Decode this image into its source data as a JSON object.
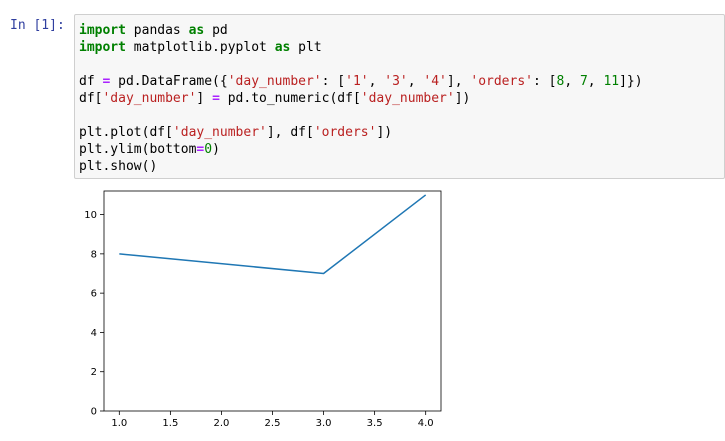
{
  "prompt": "In [1]:",
  "code_lines": [
    [
      {
        "t": "import",
        "c": "kw"
      },
      {
        "t": " pandas "
      },
      {
        "t": "as",
        "c": "kw"
      },
      {
        "t": " pd"
      }
    ],
    [
      {
        "t": "import",
        "c": "kw"
      },
      {
        "t": " matplotlib.pyplot "
      },
      {
        "t": "as",
        "c": "kw"
      },
      {
        "t": " plt"
      }
    ],
    [],
    [
      {
        "t": "df "
      },
      {
        "t": "=",
        "c": "op"
      },
      {
        "t": " pd.DataFrame({"
      },
      {
        "t": "'day_number'",
        "c": "str"
      },
      {
        "t": ": ["
      },
      {
        "t": "'1'",
        "c": "str"
      },
      {
        "t": ", "
      },
      {
        "t": "'3'",
        "c": "str"
      },
      {
        "t": ", "
      },
      {
        "t": "'4'",
        "c": "str"
      },
      {
        "t": "], "
      },
      {
        "t": "'orders'",
        "c": "str"
      },
      {
        "t": ": ["
      },
      {
        "t": "8",
        "c": "num"
      },
      {
        "t": ", "
      },
      {
        "t": "7",
        "c": "num"
      },
      {
        "t": ", "
      },
      {
        "t": "11",
        "c": "num"
      },
      {
        "t": "]})"
      }
    ],
    [
      {
        "t": "df["
      },
      {
        "t": "'day_number'",
        "c": "str"
      },
      {
        "t": "] "
      },
      {
        "t": "=",
        "c": "op"
      },
      {
        "t": " pd.to_numeric(df["
      },
      {
        "t": "'day_number'",
        "c": "str"
      },
      {
        "t": "])"
      }
    ],
    [],
    [
      {
        "t": "plt.plot(df["
      },
      {
        "t": "'day_number'",
        "c": "str"
      },
      {
        "t": "], df["
      },
      {
        "t": "'orders'",
        "c": "str"
      },
      {
        "t": "])"
      }
    ],
    [
      {
        "t": "plt.ylim(bottom"
      },
      {
        "t": "=",
        "c": "op"
      },
      {
        "t": "0",
        "c": "num"
      },
      {
        "t": ")"
      }
    ],
    [
      {
        "t": "plt.show()"
      }
    ]
  ],
  "colors": {
    "line": "#1f77b4",
    "prompt": "#303f9f",
    "keyword": "#008000",
    "string": "#ba2121",
    "number": "#008000",
    "operator": "#aa22ff"
  },
  "chart_data": {
    "type": "line",
    "x": [
      1,
      3,
      4
    ],
    "series": [
      {
        "values": [
          8,
          7,
          11
        ]
      }
    ],
    "xlim": [
      0.85,
      4.15
    ],
    "ylim": [
      0,
      11.2
    ],
    "xticks": [
      1.0,
      1.5,
      2.0,
      2.5,
      3.0,
      3.5,
      4.0
    ],
    "xtick_labels": [
      "1.0",
      "1.5",
      "2.0",
      "2.5",
      "3.0",
      "3.5",
      "4.0"
    ],
    "yticks": [
      0,
      2,
      4,
      6,
      8,
      10
    ],
    "ytick_labels": [
      "0",
      "2",
      "4",
      "6",
      "8",
      "10"
    ],
    "title": "",
    "xlabel": "",
    "ylabel": "",
    "grid": false
  }
}
